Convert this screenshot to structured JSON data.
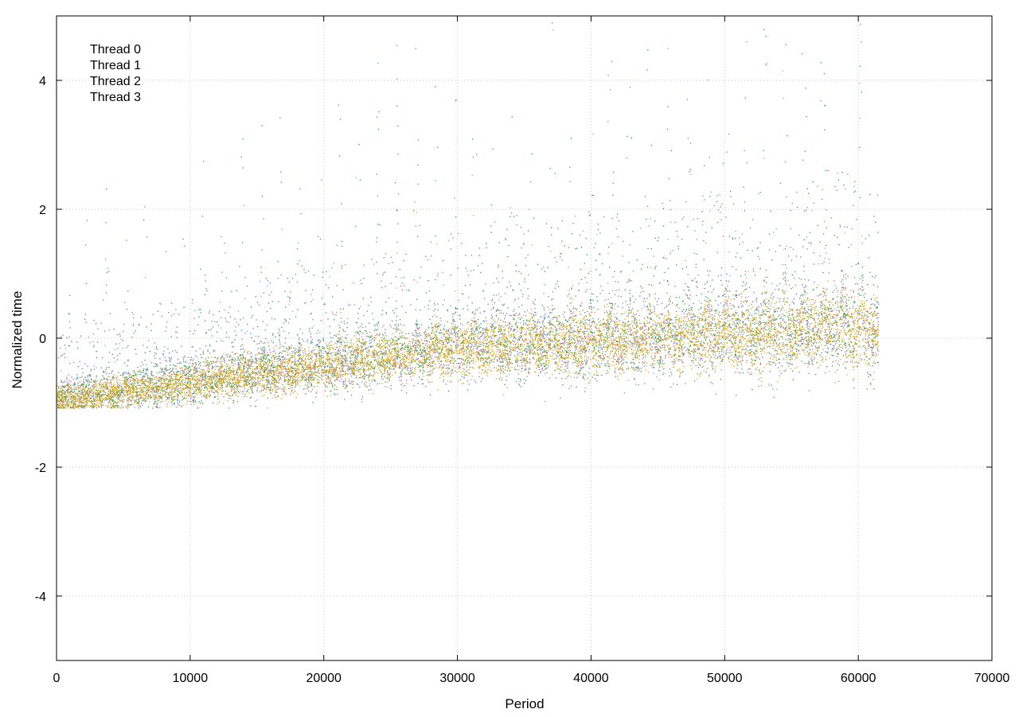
{
  "chart_data": {
    "type": "scatter",
    "title": "",
    "xlabel": "Period",
    "ylabel": "Normalized time",
    "xlim": [
      0,
      70000
    ],
    "ylim": [
      -5,
      5
    ],
    "x_ticks": [
      0,
      10000,
      20000,
      30000,
      40000,
      50000,
      60000,
      70000
    ],
    "x_tick_labels": [
      "0",
      "10000",
      "20000",
      "30000",
      "40000",
      "50000",
      "60000",
      "70000"
    ],
    "y_ticks": [
      -4,
      -2,
      0,
      2,
      4
    ],
    "y_tick_labels": [
      "-4",
      "-2",
      "0",
      "2",
      "4"
    ],
    "grid": true,
    "legend_position": "top-left",
    "x_data_range": [
      0,
      61500
    ],
    "spike_period": 1450,
    "series": [
      {
        "name": "Thread 0",
        "color": "#9467d4",
        "baseline": [
          [
            0,
            -0.95
          ],
          [
            10000,
            -0.7
          ],
          [
            20000,
            -0.45
          ],
          [
            30000,
            -0.2
          ],
          [
            40000,
            -0.1
          ],
          [
            50000,
            0.0
          ],
          [
            61500,
            0.1
          ]
        ]
      },
      {
        "name": "Thread 1",
        "color": "#2aa44a",
        "baseline": [
          [
            0,
            -0.95
          ],
          [
            10000,
            -0.7
          ],
          [
            20000,
            -0.45
          ],
          [
            30000,
            -0.2
          ],
          [
            40000,
            -0.1
          ],
          [
            50000,
            0.0
          ],
          [
            61500,
            0.1
          ]
        ]
      },
      {
        "name": "Thread 2",
        "color": "#56b4e9",
        "baseline": [
          [
            0,
            -0.95
          ],
          [
            10000,
            -0.7
          ],
          [
            20000,
            -0.45
          ],
          [
            30000,
            -0.2
          ],
          [
            40000,
            -0.1
          ],
          [
            50000,
            0.0
          ],
          [
            61500,
            0.1
          ]
        ]
      },
      {
        "name": "Thread 3",
        "color": "#e6a500",
        "baseline": [
          [
            0,
            -0.95
          ],
          [
            10000,
            -0.7
          ],
          [
            20000,
            -0.45
          ],
          [
            30000,
            -0.2
          ],
          [
            40000,
            -0.1
          ],
          [
            50000,
            0.0
          ],
          [
            61500,
            0.1
          ]
        ]
      }
    ]
  }
}
